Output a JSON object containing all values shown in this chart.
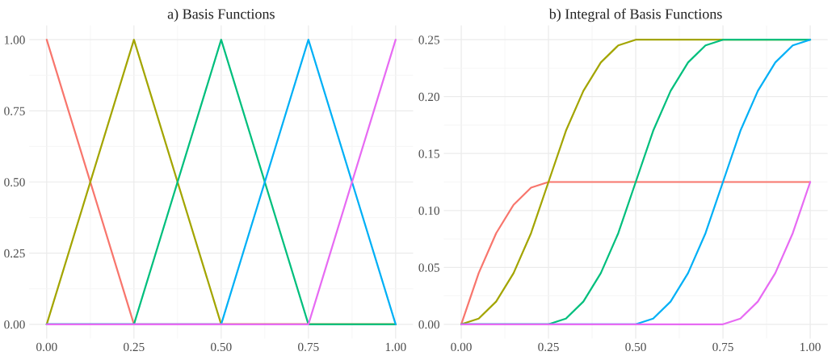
{
  "chart_data": [
    {
      "type": "line",
      "title": "a) Basis Functions",
      "grid": true,
      "line_style": "solid",
      "marker": "none",
      "xlim": [
        -0.05,
        1.05
      ],
      "ylim": [
        -0.05,
        1.05
      ],
      "xticks": [
        {
          "value": 0,
          "label": "0.00"
        },
        {
          "value": 0.25,
          "label": "0.25"
        },
        {
          "value": 0.5,
          "label": "0.50"
        },
        {
          "value": 0.75,
          "label": "0.75"
        },
        {
          "value": 1,
          "label": "1.00"
        }
      ],
      "yticks": [
        {
          "value": 0,
          "label": "0.00"
        },
        {
          "value": 0.25,
          "label": "0.25"
        },
        {
          "value": 0.5,
          "label": "0.50"
        },
        {
          "value": 0.75,
          "label": "0.75"
        },
        {
          "value": 1,
          "label": "1.00"
        }
      ],
      "series": [
        {
          "color": "#f8766d",
          "x": [
            0,
            0.25,
            1
          ],
          "values": [
            1,
            0,
            0
          ]
        },
        {
          "color": "#a3a500",
          "x": [
            0,
            0.25,
            0.5,
            1
          ],
          "values": [
            0,
            1,
            0,
            0
          ]
        },
        {
          "color": "#00bf7d",
          "x": [
            0,
            0.25,
            0.5,
            0.75,
            1
          ],
          "values": [
            0,
            0,
            1,
            0,
            0
          ]
        },
        {
          "color": "#00b0f6",
          "x": [
            0,
            0.5,
            0.75,
            1
          ],
          "values": [
            0,
            0,
            1,
            0
          ]
        },
        {
          "color": "#e76bf3",
          "x": [
            0,
            0.75,
            1
          ],
          "values": [
            0,
            0,
            1
          ]
        }
      ]
    },
    {
      "type": "line",
      "title": "b) Integral of Basis Functions",
      "grid": true,
      "line_style": "solid",
      "marker": "none",
      "xlim": [
        -0.05,
        1.05
      ],
      "ylim": [
        -0.0125,
        0.2625
      ],
      "xticks": [
        {
          "value": 0,
          "label": "0.00"
        },
        {
          "value": 0.25,
          "label": "0.25"
        },
        {
          "value": 0.5,
          "label": "0.50"
        },
        {
          "value": 0.75,
          "label": "0.75"
        },
        {
          "value": 1,
          "label": "1.00"
        }
      ],
      "yticks": [
        {
          "value": 0,
          "label": "0.00"
        },
        {
          "value": 0.05,
          "label": "0.05"
        },
        {
          "value": 0.1,
          "label": "0.10"
        },
        {
          "value": 0.15,
          "label": "0.15"
        },
        {
          "value": 0.2,
          "label": "0.20"
        },
        {
          "value": 0.25,
          "label": "0.25"
        }
      ],
      "series": [
        {
          "color": "#f8766d",
          "x": [
            0,
            0.05,
            0.1,
            0.15,
            0.2,
            0.25,
            1
          ],
          "values": [
            0,
            0.045,
            0.08,
            0.105,
            0.12,
            0.125,
            0.125
          ]
        },
        {
          "color": "#a3a500",
          "x": [
            0,
            0.05,
            0.1,
            0.15,
            0.2,
            0.25,
            0.3,
            0.35,
            0.4,
            0.45,
            0.5,
            1
          ],
          "values": [
            0,
            0.005,
            0.02,
            0.045,
            0.08,
            0.125,
            0.17,
            0.205,
            0.23,
            0.245,
            0.25,
            0.25
          ]
        },
        {
          "color": "#00bf7d",
          "x": [
            0,
            0.25,
            0.3,
            0.35,
            0.4,
            0.45,
            0.5,
            0.55,
            0.6,
            0.65,
            0.7,
            0.75,
            1
          ],
          "values": [
            0,
            0,
            0.005,
            0.02,
            0.045,
            0.08,
            0.125,
            0.17,
            0.205,
            0.23,
            0.245,
            0.25,
            0.25
          ]
        },
        {
          "color": "#00b0f6",
          "x": [
            0,
            0.5,
            0.55,
            0.6,
            0.65,
            0.7,
            0.75,
            0.8,
            0.85,
            0.9,
            0.95,
            1
          ],
          "values": [
            0,
            0,
            0.005,
            0.02,
            0.045,
            0.08,
            0.125,
            0.17,
            0.205,
            0.23,
            0.245,
            0.25
          ]
        },
        {
          "color": "#e76bf3",
          "x": [
            0,
            0.75,
            0.8,
            0.85,
            0.9,
            0.95,
            1
          ],
          "values": [
            0,
            0,
            0.005,
            0.02,
            0.045,
            0.08,
            0.125
          ]
        }
      ]
    }
  ]
}
